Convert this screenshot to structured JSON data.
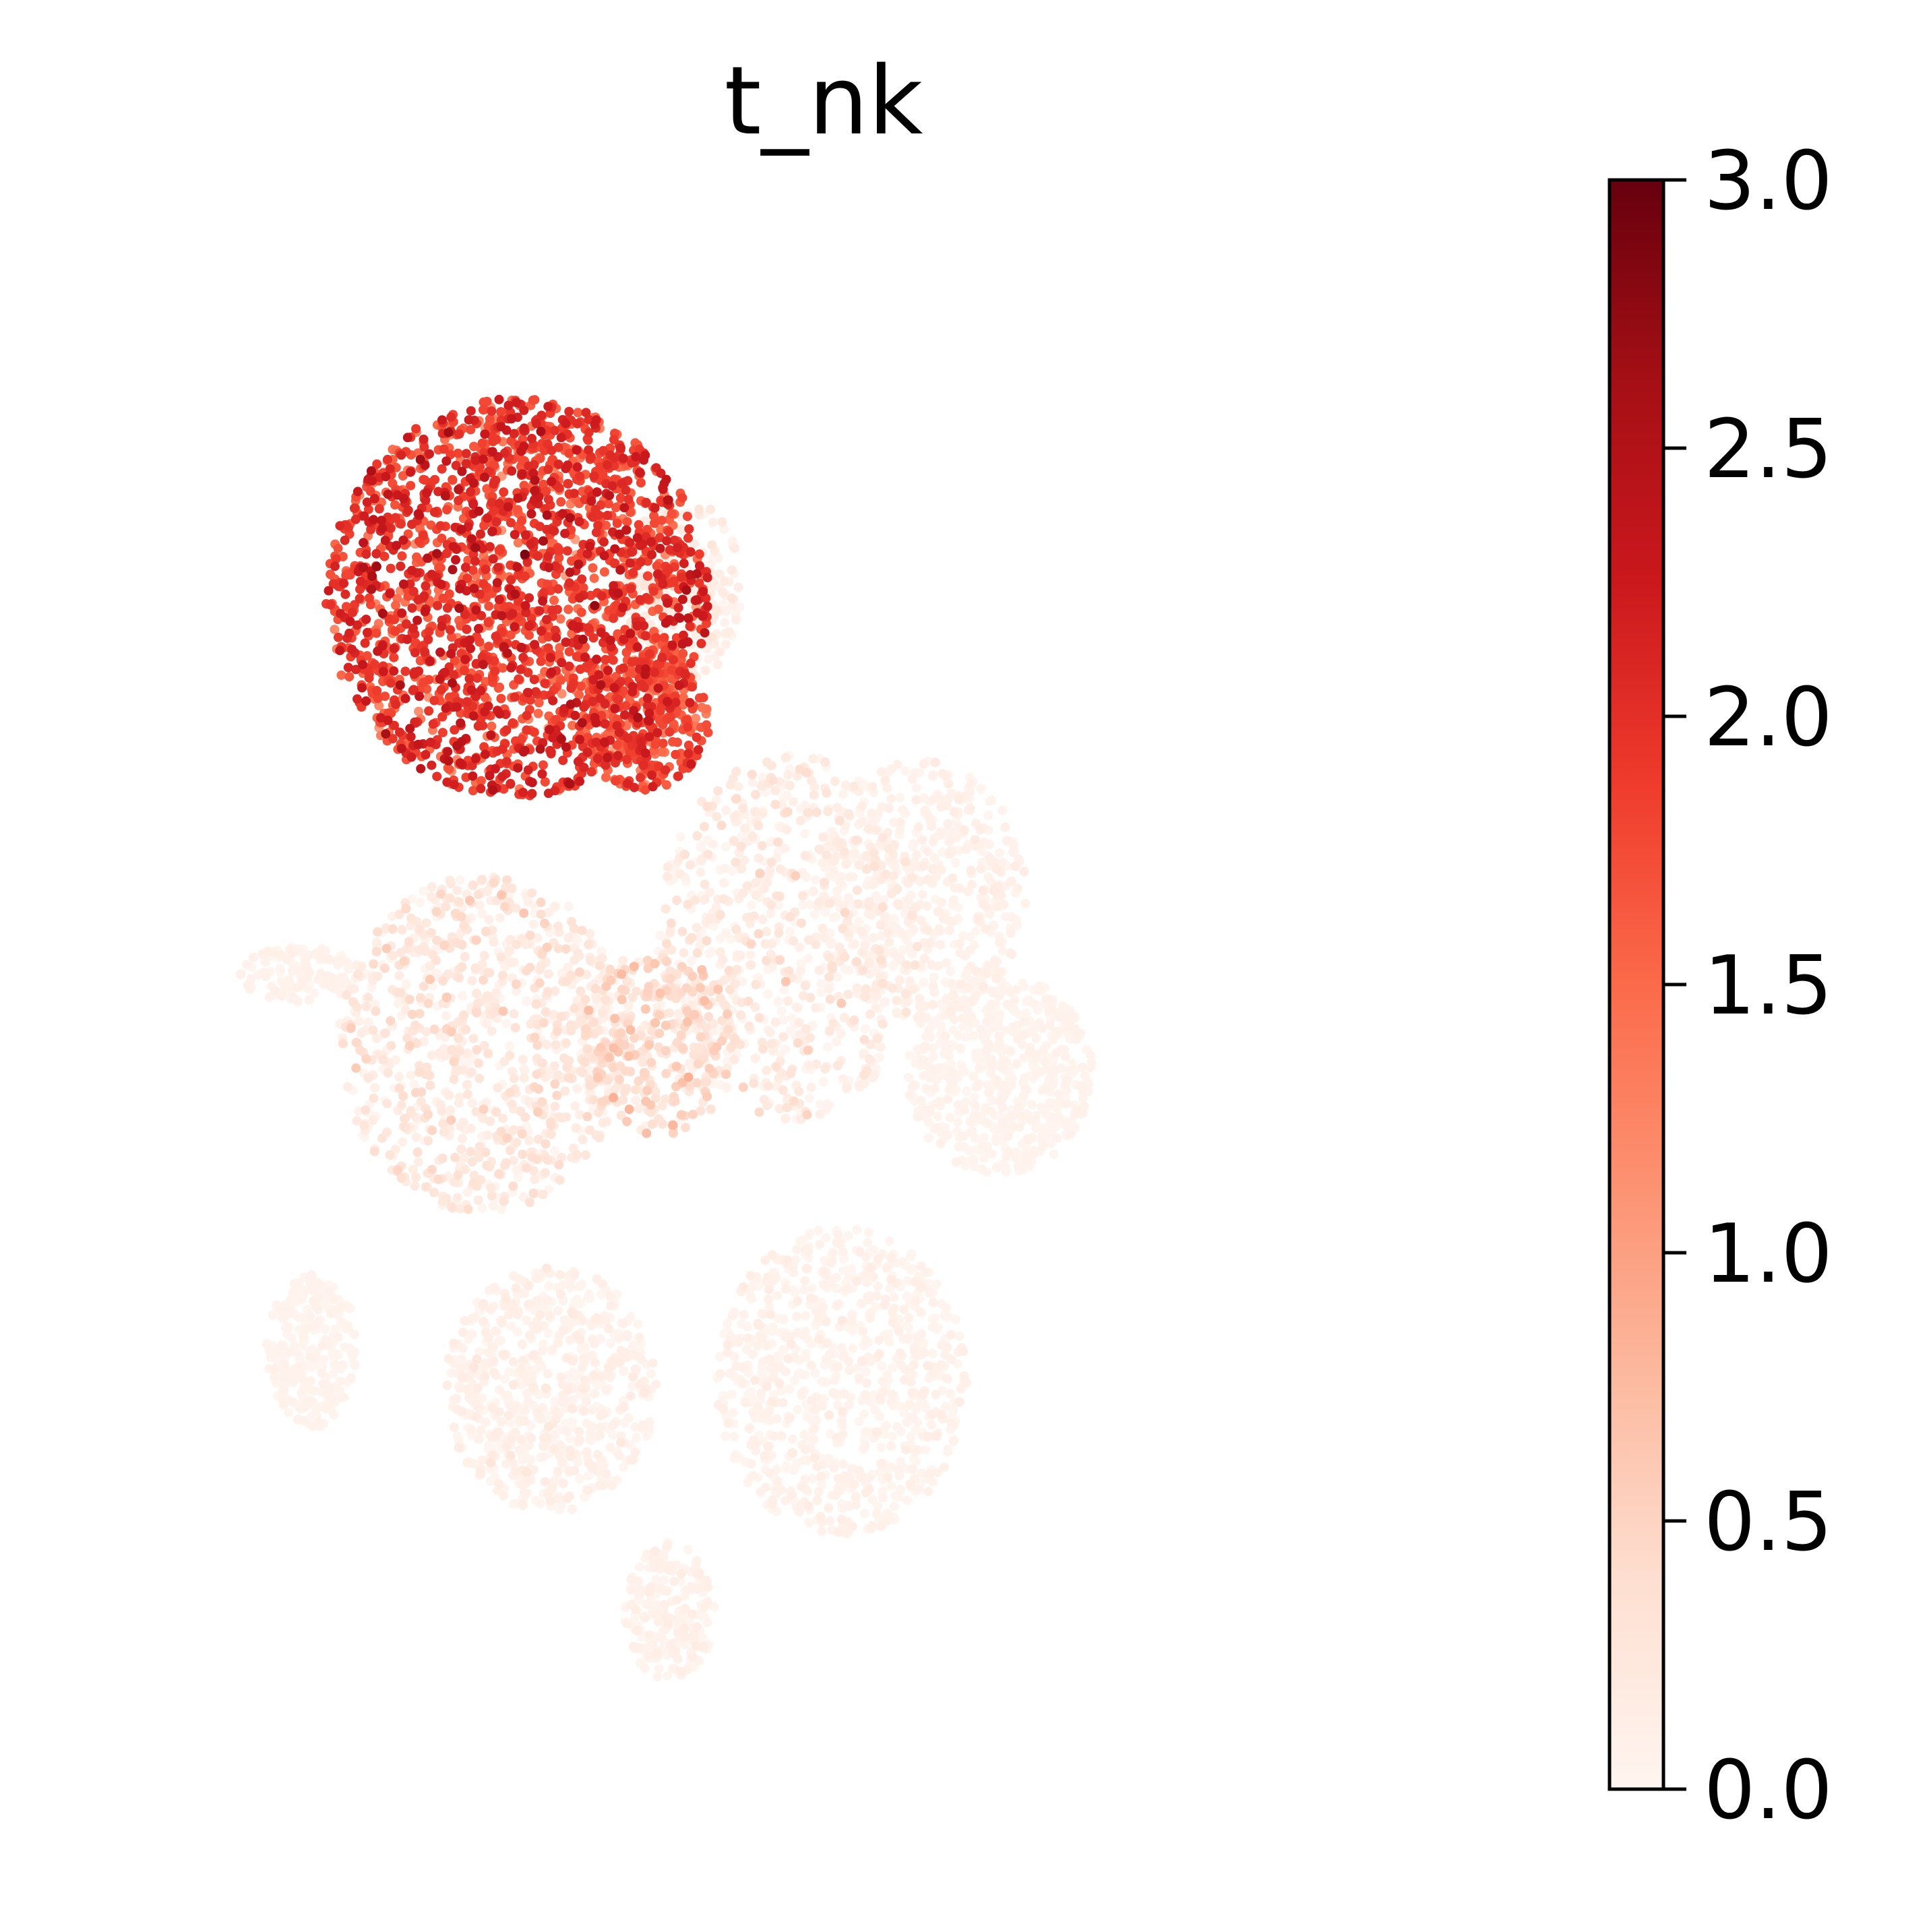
{
  "chart_data": {
    "type": "scatter",
    "title": "t_nk",
    "xlabel": "",
    "ylabel": "",
    "axes_visible": false,
    "grid": false,
    "colormap": {
      "name": "Reds",
      "stops": [
        "#fff5f0",
        "#fee0d2",
        "#fcbba1",
        "#fc9272",
        "#fb6a4a",
        "#ef3b2c",
        "#cb181d",
        "#a50f15",
        "#67000d"
      ],
      "vmin": 0.0,
      "vmax": 3.0
    },
    "colorbar": {
      "ticks": [
        0.0,
        0.5,
        1.0,
        1.5,
        2.0,
        2.5,
        3.0
      ],
      "tick_labels": [
        "0.0",
        "0.5",
        "1.0",
        "1.5",
        "2.0",
        "2.5",
        "3.0"
      ],
      "placement": "right"
    },
    "xlim": [
      0,
      100
    ],
    "ylim": [
      0,
      100
    ],
    "clusters": [
      {
        "name": "",
        "cx": 30.5,
        "cy": 76.0,
        "rx": 14.5,
        "ry": 13.0,
        "n": 2200,
        "value_mean": 1.85,
        "value_sd": 0.3
      },
      {
        "name": "",
        "cx": 40.0,
        "cy": 68.0,
        "rx": 5.0,
        "ry": 4.5,
        "n": 300,
        "value_mean": 1.7,
        "value_sd": 0.3
      },
      {
        "name": "",
        "cx": 43.0,
        "cy": 76.5,
        "rx": 4.5,
        "ry": 6.0,
        "n": 250,
        "value_mean": 0.12,
        "value_sd": 0.08
      },
      {
        "name": "",
        "cx": 28.0,
        "cy": 47.0,
        "rx": 11.0,
        "ry": 11.0,
        "n": 900,
        "value_mean": 0.18,
        "value_sd": 0.15
      },
      {
        "name": "",
        "cx": 41.0,
        "cy": 47.0,
        "rx": 6.0,
        "ry": 6.0,
        "n": 350,
        "value_mean": 0.3,
        "value_sd": 0.2
      },
      {
        "name": "",
        "cx": 51.0,
        "cy": 54.0,
        "rx": 10.0,
        "ry": 12.0,
        "n": 700,
        "value_mean": 0.12,
        "value_sd": 0.15
      },
      {
        "name": "",
        "cx": 61.0,
        "cy": 57.0,
        "rx": 8.0,
        "ry": 8.5,
        "n": 500,
        "value_mean": 0.06,
        "value_sd": 0.05
      },
      {
        "name": "",
        "cx": 67.0,
        "cy": 45.0,
        "rx": 7.0,
        "ry": 6.5,
        "n": 550,
        "value_mean": 0.03,
        "value_sd": 0.02
      },
      {
        "name": "",
        "cx": 14.0,
        "cy": 51.5,
        "rx": 4.5,
        "ry": 1.8,
        "n": 120,
        "value_mean": 0.04,
        "value_sd": 0.03
      },
      {
        "name": "",
        "cx": 15.0,
        "cy": 27.0,
        "rx": 3.5,
        "ry": 5.0,
        "n": 250,
        "value_mean": 0.03,
        "value_sd": 0.02
      },
      {
        "name": "",
        "cx": 33.0,
        "cy": 24.5,
        "rx": 8.0,
        "ry": 8.0,
        "n": 650,
        "value_mean": 0.05,
        "value_sd": 0.06
      },
      {
        "name": "",
        "cx": 55.0,
        "cy": 25.0,
        "rx": 9.5,
        "ry": 10.0,
        "n": 800,
        "value_mean": 0.04,
        "value_sd": 0.05
      },
      {
        "name": "",
        "cx": 42.0,
        "cy": 10.0,
        "rx": 3.5,
        "ry": 4.5,
        "n": 200,
        "value_mean": 0.04,
        "value_sd": 0.05
      }
    ]
  }
}
